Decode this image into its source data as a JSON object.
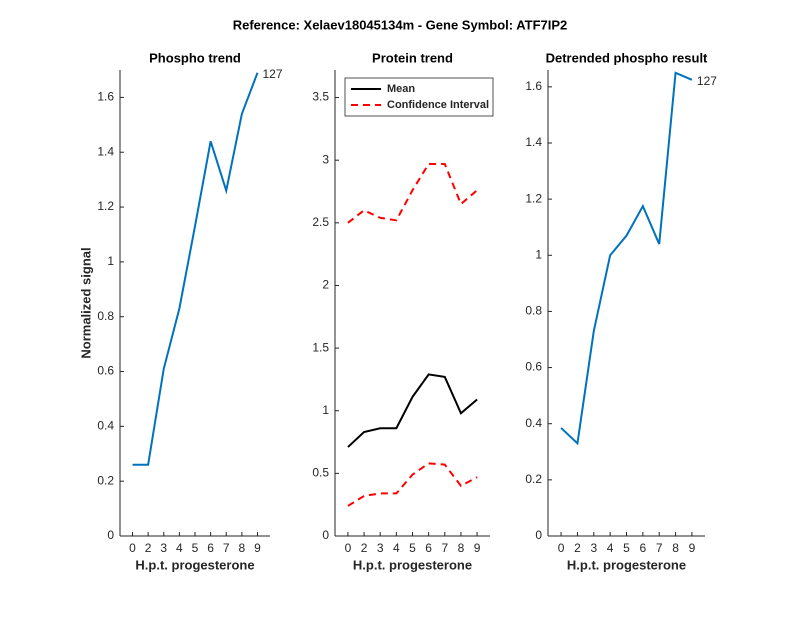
{
  "title": "Reference:  Xelaev18045134m - Gene Symbol:  ATF7IP2",
  "chart_data": [
    {
      "type": "line",
      "title": "Phospho trend",
      "xlabel": "H.p.t. progesterone",
      "ylabel": "Normalized signal",
      "categories": [
        "0",
        "2",
        "3",
        "4",
        "5",
        "6",
        "7",
        "8",
        "9"
      ],
      "series": [
        {
          "color": "#0072bd",
          "values": [
            0.26,
            0.26,
            0.61,
            0.83,
            1.13,
            1.44,
            1.26,
            1.54,
            1.69
          ]
        }
      ],
      "end_label": "127",
      "ylim": [
        0,
        1.7
      ],
      "yticks": [
        0,
        0.2,
        0.4,
        0.6,
        0.8,
        1,
        1.2,
        1.4,
        1.6
      ]
    },
    {
      "type": "line",
      "title": "Protein trend",
      "xlabel": "H.p.t. progesterone",
      "categories": [
        "0",
        "2",
        "3",
        "4",
        "5",
        "6",
        "7",
        "8",
        "9"
      ],
      "series": [
        {
          "name": "Mean",
          "color": "#000000",
          "values": [
            0.71,
            0.83,
            0.86,
            0.86,
            1.11,
            1.29,
            1.27,
            0.98,
            1.09
          ]
        },
        {
          "name": "Confidence Interval",
          "color": "#ff0000",
          "style": "dashed",
          "upper": [
            2.5,
            2.6,
            2.54,
            2.52,
            2.76,
            2.97,
            2.97,
            2.65,
            2.76
          ],
          "lower": [
            0.24,
            0.32,
            0.34,
            0.34,
            0.49,
            0.58,
            0.57,
            0.4,
            0.47
          ]
        }
      ],
      "legend": "top-left",
      "ylim": [
        0,
        3.72
      ],
      "yticks": [
        0,
        0.5,
        1,
        1.5,
        2,
        2.5,
        3,
        3.5
      ]
    },
    {
      "type": "line",
      "title": "Detrended phospho result",
      "xlabel": "H.p.t. progesterone",
      "categories": [
        "0",
        "2",
        "3",
        "4",
        "5",
        "6",
        "7",
        "8",
        "9"
      ],
      "series": [
        {
          "color": "#0072bd",
          "values": [
            0.385,
            0.33,
            0.73,
            1.0,
            1.07,
            1.175,
            1.04,
            1.65,
            1.625
          ]
        }
      ],
      "end_label": "127",
      "ylim": [
        0,
        1.66
      ],
      "yticks": [
        0,
        0.2,
        0.4,
        0.6,
        0.8,
        1,
        1.2,
        1.4,
        1.6
      ]
    }
  ]
}
